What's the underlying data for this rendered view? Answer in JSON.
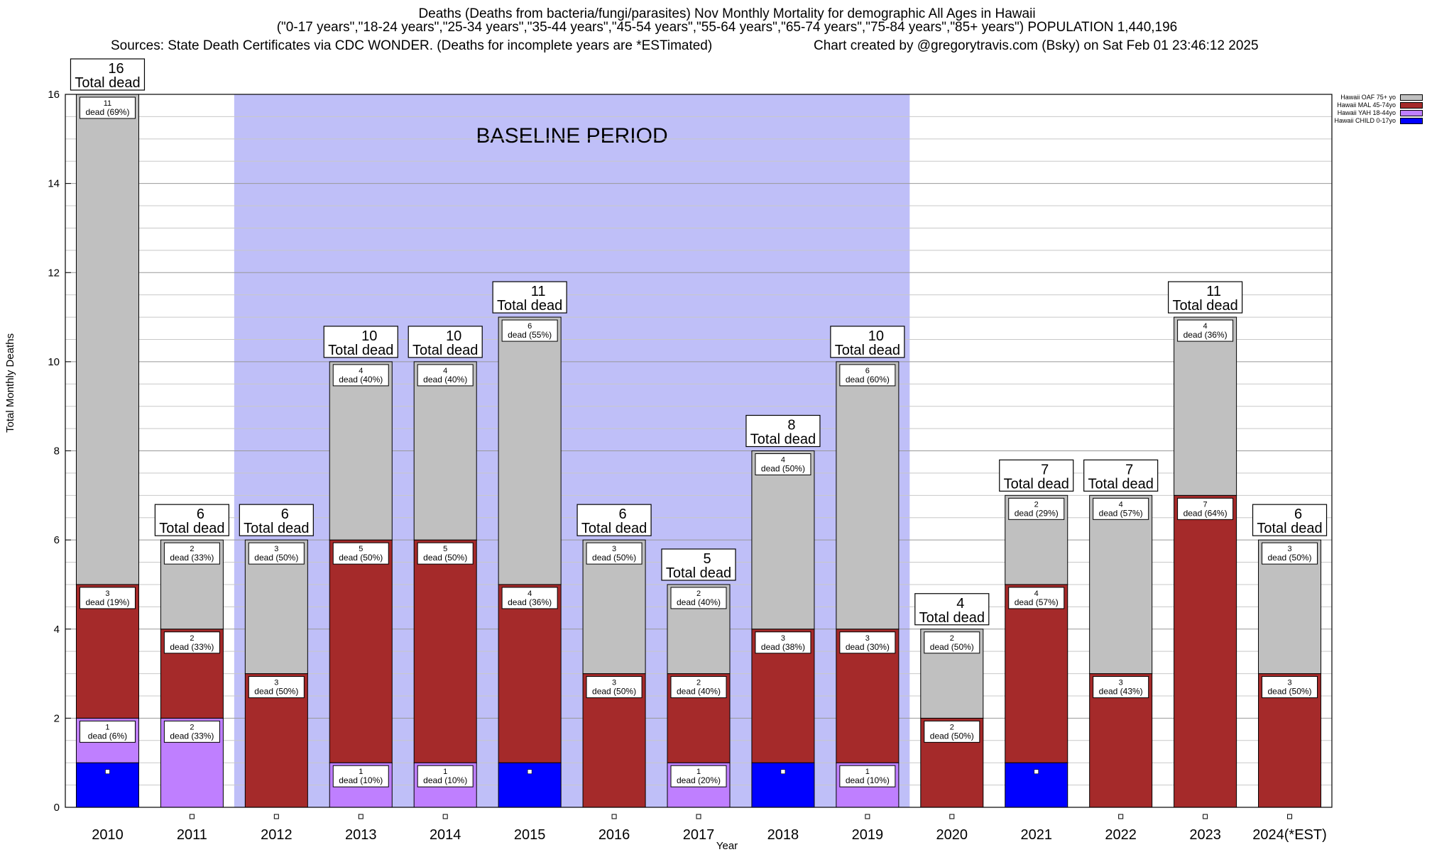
{
  "chart_data": {
    "type": "bar",
    "stacked": true,
    "title_lines": [
      "Deaths (Deaths from bacteria/fungi/parasites) Nov Monthly Mortality for demographic All Ages in Hawaii",
      "(\"0-17 years\",\"18-24 years\",\"25-34 years\",\"35-44 years\",\"45-54 years\",\"55-64 years\",\"65-74 years\",\"75-84 years\",\"85+ years\") POPULATION 1,440,196"
    ],
    "sources": "Sources: State Death Certificates via CDC WONDER. (Deaths for incomplete years are *ESTimated)",
    "credit": "Chart created by @gregorytravis.com (Bsky) on Sat Feb 01 23:46:12 2025",
    "xlabel": "Year",
    "ylabel": "Total Monthly Deaths",
    "ylim": [
      0,
      16
    ],
    "yticks": [
      0,
      2,
      4,
      6,
      8,
      10,
      12,
      14,
      16
    ],
    "grid": true,
    "legend_position": "top-right",
    "baseline_label": "BASELINE PERIOD",
    "baseline_range": [
      "2012",
      "2019"
    ],
    "total_suffix": "Total dead",
    "categories": [
      "2010",
      "2011",
      "2012",
      "2013",
      "2014",
      "2015",
      "2016",
      "2017",
      "2018",
      "2019",
      "2020",
      "2021",
      "2022",
      "2023",
      "2024(*EST)"
    ],
    "series": [
      {
        "name": "Hawaii CHILD 0-17yo",
        "color": "#0000ff",
        "values": [
          1,
          0,
          0,
          0,
          0,
          1,
          0,
          0,
          1,
          0,
          0,
          1,
          0,
          0,
          0
        ],
        "labels": [
          "",
          "",
          "",
          "",
          "",
          "",
          "",
          "",
          "",
          "",
          "",
          "",
          "",
          "",
          ""
        ]
      },
      {
        "name": "Hawaii YAH 18-44yo",
        "color": "#bf7fff",
        "values": [
          1,
          2,
          0,
          1,
          1,
          0,
          0,
          1,
          0,
          1,
          0,
          0,
          0,
          0,
          0
        ],
        "labels": [
          "1|dead (6%)",
          "2|dead (33%)",
          "",
          "1|dead (10%)",
          "1|dead (10%)",
          "",
          "",
          "1|dead (20%)",
          "",
          "1|dead (10%)",
          "",
          "",
          "",
          "",
          ""
        ]
      },
      {
        "name": "Hawaii MAL 45-74yo",
        "color": "#a52a2a",
        "values": [
          3,
          2,
          3,
          5,
          5,
          4,
          3,
          2,
          3,
          3,
          2,
          4,
          3,
          7,
          3
        ],
        "labels": [
          "3|dead (19%)",
          "2|dead (33%)",
          "3|dead (50%)",
          "5|dead (50%)",
          "5|dead (50%)",
          "4|dead (36%)",
          "3|dead (50%)",
          "2|dead (40%)",
          "3|dead (38%)",
          "3|dead (30%)",
          "2|dead (50%)",
          "4|dead (57%)",
          "3|dead (43%)",
          "7|dead (64%)",
          "3|dead (50%)"
        ]
      },
      {
        "name": "Hawaii OAF 75+ yo",
        "color": "#c0c0c0",
        "values": [
          11,
          2,
          3,
          4,
          4,
          6,
          3,
          2,
          4,
          6,
          2,
          2,
          4,
          4,
          3
        ],
        "labels": [
          "11|dead (69%)",
          "2|dead (33%)",
          "3|dead (50%)",
          "4|dead (40%)",
          "4|dead (40%)",
          "6|dead (55%)",
          "3|dead (50%)",
          "2|dead (40%)",
          "4|dead (50%)",
          "6|dead (60%)",
          "2|dead (50%)",
          "2|dead (29%)",
          "4|dead (57%)",
          "4|dead (36%)",
          "3|dead (50%)"
        ]
      }
    ],
    "totals": [
      16,
      6,
      6,
      10,
      10,
      11,
      6,
      5,
      8,
      10,
      4,
      7,
      7,
      11,
      6
    ]
  }
}
